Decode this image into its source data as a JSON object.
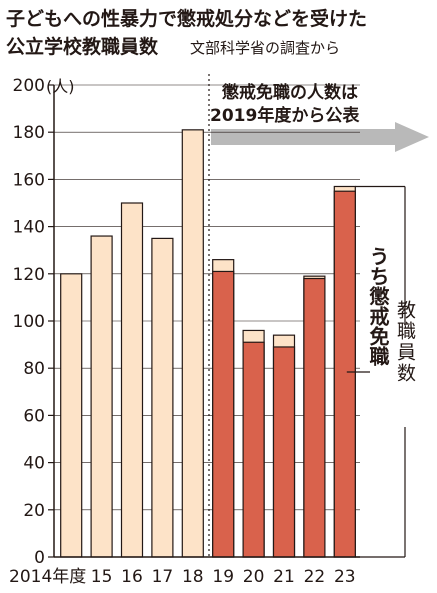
{
  "title_line1": "子どもへの性暴力で懲戒処分などを受けた",
  "title_line2": "公立学校教職員数",
  "source": "文部科学省の調査から",
  "unit_label": "(人)",
  "note_line1": "懲戒免職の人数は",
  "note_line2": "2019年度から公表",
  "colors": {
    "total_fill": "#fde3c8",
    "dismissal_fill": "#d9624c",
    "outline": "#231815",
    "arrow": "#b9b9b9",
    "grid": "#231815"
  },
  "chart_data": {
    "type": "bar",
    "categories": [
      "2014年度",
      "15",
      "16",
      "17",
      "18",
      "19",
      "20",
      "21",
      "22",
      "23"
    ],
    "series": [
      {
        "name": "教職員数",
        "values": [
          120,
          136,
          150,
          135,
          181,
          126,
          96,
          94,
          119,
          157
        ]
      },
      {
        "name": "うち懲戒免職",
        "values": [
          null,
          null,
          null,
          null,
          null,
          121,
          91,
          89,
          118,
          155
        ]
      }
    ],
    "y_ticks": [
      0,
      20,
      40,
      60,
      80,
      100,
      120,
      140,
      160,
      180,
      200
    ],
    "ylim": [
      0,
      200
    ],
    "ylabel": "(人)",
    "legend": {
      "total_label": "教職員数",
      "dismissal_label": "うち懲戒免職"
    }
  }
}
